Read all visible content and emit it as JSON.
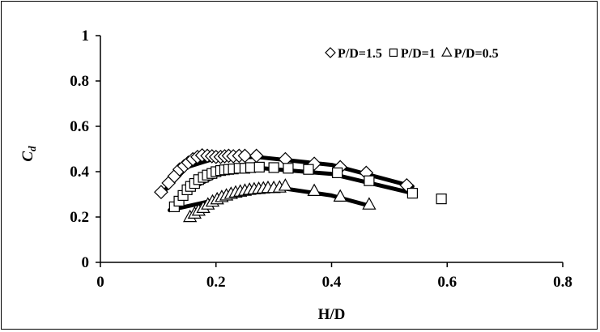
{
  "chart_data": {
    "type": "scatter",
    "title": "",
    "xlabel": "H/D",
    "ylabel_main": "C",
    "ylabel_sub": "d",
    "xlim": [
      0,
      0.8
    ],
    "ylim": [
      0,
      1
    ],
    "xticks": [
      0,
      0.2,
      0.4,
      0.6,
      0.8
    ],
    "xtick_labels": [
      "0",
      "0.2",
      "0.4",
      "0.6",
      "0.8"
    ],
    "yticks": [
      0,
      0.2,
      0.4,
      0.6,
      0.8,
      1
    ],
    "ytick_labels": [
      "0",
      "0.2",
      "0.4",
      "0.6",
      "0.8",
      "1"
    ],
    "grid": false,
    "legend_position": "top-right",
    "series": [
      {
        "name": "P/D=1.5",
        "marker": "diamond",
        "color": "#000000",
        "points": [
          [
            0.105,
            0.31
          ],
          [
            0.118,
            0.35
          ],
          [
            0.128,
            0.38
          ],
          [
            0.137,
            0.41
          ],
          [
            0.145,
            0.425
          ],
          [
            0.152,
            0.44
          ],
          [
            0.16,
            0.455
          ],
          [
            0.168,
            0.465
          ],
          [
            0.176,
            0.472
          ],
          [
            0.185,
            0.47
          ],
          [
            0.193,
            0.468
          ],
          [
            0.2,
            0.465
          ],
          [
            0.208,
            0.465
          ],
          [
            0.215,
            0.468
          ],
          [
            0.222,
            0.47
          ],
          [
            0.23,
            0.468
          ],
          [
            0.24,
            0.47
          ],
          [
            0.25,
            0.47
          ],
          [
            0.27,
            0.47
          ],
          [
            0.32,
            0.455
          ],
          [
            0.37,
            0.435
          ],
          [
            0.415,
            0.42
          ],
          [
            0.46,
            0.395
          ],
          [
            0.53,
            0.34
          ]
        ]
      },
      {
        "name": "P/D=1",
        "marker": "square",
        "color": "#000000",
        "points": [
          [
            0.128,
            0.245
          ],
          [
            0.136,
            0.27
          ],
          [
            0.143,
            0.295
          ],
          [
            0.15,
            0.32
          ],
          [
            0.156,
            0.335
          ],
          [
            0.163,
            0.348
          ],
          [
            0.17,
            0.365
          ],
          [
            0.178,
            0.375
          ],
          [
            0.185,
            0.385
          ],
          [
            0.193,
            0.392
          ],
          [
            0.2,
            0.4
          ],
          [
            0.208,
            0.405
          ],
          [
            0.215,
            0.408
          ],
          [
            0.222,
            0.41
          ],
          [
            0.23,
            0.412
          ],
          [
            0.24,
            0.415
          ],
          [
            0.25,
            0.415
          ],
          [
            0.26,
            0.418
          ],
          [
            0.275,
            0.42
          ],
          [
            0.3,
            0.418
          ],
          [
            0.325,
            0.415
          ],
          [
            0.36,
            0.41
          ],
          [
            0.41,
            0.395
          ],
          [
            0.465,
            0.36
          ],
          [
            0.54,
            0.305
          ],
          [
            0.59,
            0.28
          ]
        ]
      },
      {
        "name": "P/D=0.5",
        "marker": "triangle",
        "color": "#000000",
        "points": [
          [
            0.155,
            0.2
          ],
          [
            0.163,
            0.215
          ],
          [
            0.17,
            0.228
          ],
          [
            0.178,
            0.24
          ],
          [
            0.186,
            0.255
          ],
          [
            0.194,
            0.268
          ],
          [
            0.202,
            0.278
          ],
          [
            0.21,
            0.288
          ],
          [
            0.218,
            0.295
          ],
          [
            0.226,
            0.302
          ],
          [
            0.234,
            0.308
          ],
          [
            0.242,
            0.312
          ],
          [
            0.25,
            0.316
          ],
          [
            0.258,
            0.32
          ],
          [
            0.266,
            0.322
          ],
          [
            0.274,
            0.324
          ],
          [
            0.282,
            0.326
          ],
          [
            0.29,
            0.328
          ],
          [
            0.3,
            0.328
          ],
          [
            0.31,
            0.33
          ],
          [
            0.32,
            0.338
          ],
          [
            0.37,
            0.315
          ],
          [
            0.415,
            0.29
          ],
          [
            0.465,
            0.255
          ]
        ]
      }
    ],
    "fit_lines": [
      {
        "series": "P/D=1.5",
        "points": [
          [
            0.105,
            0.3
          ],
          [
            0.15,
            0.42
          ],
          [
            0.2,
            0.46
          ],
          [
            0.27,
            0.465
          ],
          [
            0.4,
            0.43
          ],
          [
            0.54,
            0.335
          ]
        ]
      },
      {
        "series": "P/D=1",
        "points": [
          [
            0.12,
            0.23
          ],
          [
            0.16,
            0.33
          ],
          [
            0.21,
            0.395
          ],
          [
            0.28,
            0.415
          ],
          [
            0.4,
            0.39
          ],
          [
            0.54,
            0.305
          ]
        ]
      },
      {
        "series": "P/D=0.5",
        "points": [
          [
            0.12,
            0.23
          ],
          [
            0.19,
            0.27
          ],
          [
            0.25,
            0.31
          ],
          [
            0.32,
            0.325
          ],
          [
            0.4,
            0.295
          ],
          [
            0.465,
            0.25
          ]
        ]
      }
    ]
  }
}
